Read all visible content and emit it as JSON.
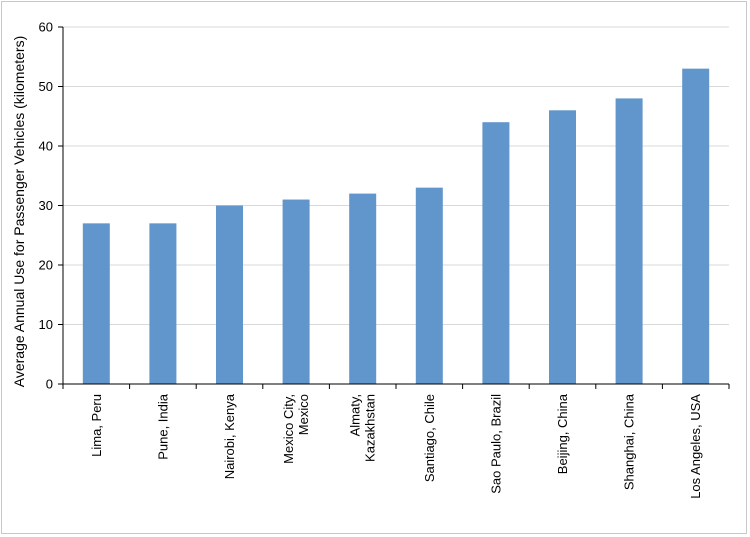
{
  "chart_data": {
    "type": "bar",
    "title": "",
    "xlabel": "",
    "ylabel": "Average Annual Use for Passenger Vehicles (kilometers)",
    "ylim": [
      0,
      60
    ],
    "yticks": [
      0,
      10,
      20,
      30,
      40,
      50,
      60
    ],
    "grid": true,
    "legend": "none",
    "bar_color": "#6096CB",
    "categories": [
      [
        "Lima, Peru"
      ],
      [
        "Pune, India"
      ],
      [
        "Nairobi, Kenya"
      ],
      [
        "Mexico City,",
        "Mexico"
      ],
      [
        "Almaty,",
        "Kazakhstan"
      ],
      [
        "Santiago, Chile"
      ],
      [
        "Sao Paulo, Brazil"
      ],
      [
        "Beijing, China"
      ],
      [
        "Shanghai, China"
      ],
      [
        "Los Angeles, USA"
      ]
    ],
    "values": [
      27,
      27,
      30,
      31,
      32,
      33,
      44,
      46,
      48,
      53
    ]
  }
}
